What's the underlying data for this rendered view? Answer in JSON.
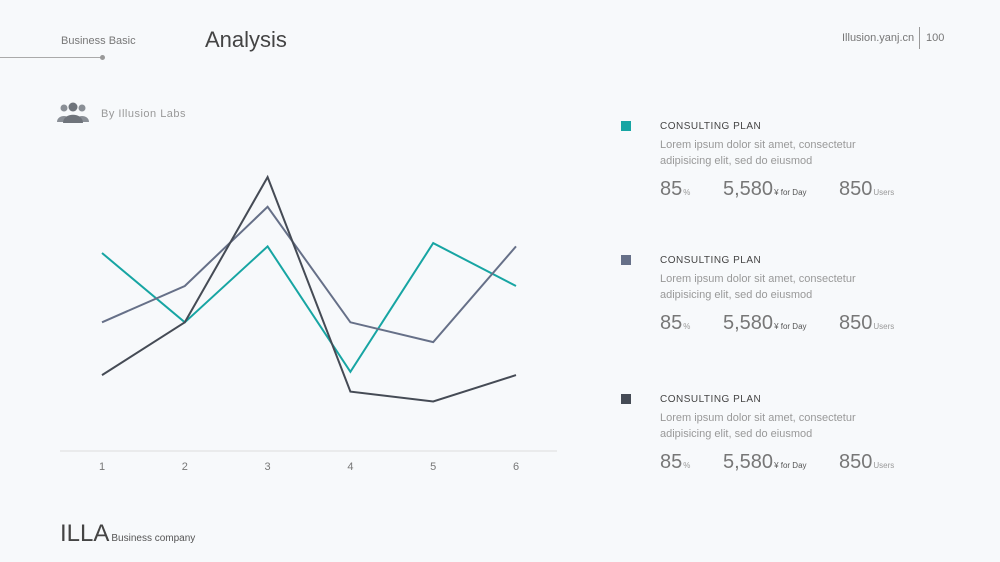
{
  "header": {
    "section": "Business Basic",
    "title": "Analysis",
    "site": "Illusion.yanj.cn",
    "page": "100"
  },
  "byline": {
    "label": "By  Illusion  Labs",
    "icon": "users-icon"
  },
  "chart_data": {
    "type": "line",
    "x": [
      "1",
      "2",
      "3",
      "4",
      "5",
      "6"
    ],
    "ylim": [
      0,
      100
    ],
    "grid": false,
    "series": [
      {
        "color": "#17a5a3",
        "values": [
          60,
          39,
          62,
          24,
          63,
          50
        ]
      },
      {
        "color": "#667088",
        "values": [
          39,
          50,
          74,
          39,
          33,
          62
        ]
      },
      {
        "color": "#454b55",
        "values": [
          23,
          39,
          83,
          18,
          15,
          23
        ]
      }
    ]
  },
  "plans": [
    {
      "color": "#17a5a3",
      "title": "CONSULTING  PLAN",
      "desc": "Lorem ipsum dolor sit amet, consectetur adipisicing  elit, sed do eiusmod",
      "stat1": {
        "value": "85",
        "unit": "%"
      },
      "stat2": {
        "value": "5,580",
        "unit": "¥ for Day"
      },
      "stat3": {
        "value": "850",
        "unit": "Users"
      }
    },
    {
      "color": "#667088",
      "title": "CONSULTING  PLAN",
      "desc": "Lorem ipsum dolor sit amet, consectetur adipisicing  elit, sed do eiusmod",
      "stat1": {
        "value": "85",
        "unit": "%"
      },
      "stat2": {
        "value": "5,580",
        "unit": "¥ for Day"
      },
      "stat3": {
        "value": "850",
        "unit": "Users"
      }
    },
    {
      "color": "#454b55",
      "title": "CONSULTING  PLAN",
      "desc": "Lorem ipsum dolor sit amet, consectetur adipisicing  elit, sed do eiusmod",
      "stat1": {
        "value": "85",
        "unit": "%"
      },
      "stat2": {
        "value": "5,580",
        "unit": "¥ for Day"
      },
      "stat3": {
        "value": "850",
        "unit": "Users"
      }
    }
  ],
  "footer": {
    "brand": "ILLA",
    "sub": "Business  company"
  }
}
